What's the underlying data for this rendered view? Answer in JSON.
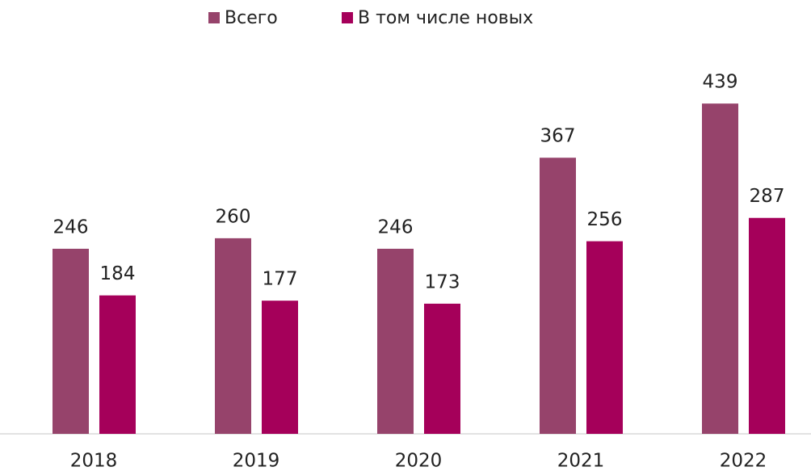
{
  "chart_data": {
    "type": "bar",
    "categories": [
      "2018",
      "2019",
      "2020",
      "2021",
      "2022"
    ],
    "series": [
      {
        "name": "Всего",
        "color": "#96436b",
        "values": [
          246,
          260,
          246,
          367,
          439
        ]
      },
      {
        "name": "В том числе новых",
        "color": "#a5005a",
        "values": [
          184,
          177,
          173,
          256,
          287
        ]
      }
    ],
    "ylim": [
      0,
      480
    ]
  }
}
